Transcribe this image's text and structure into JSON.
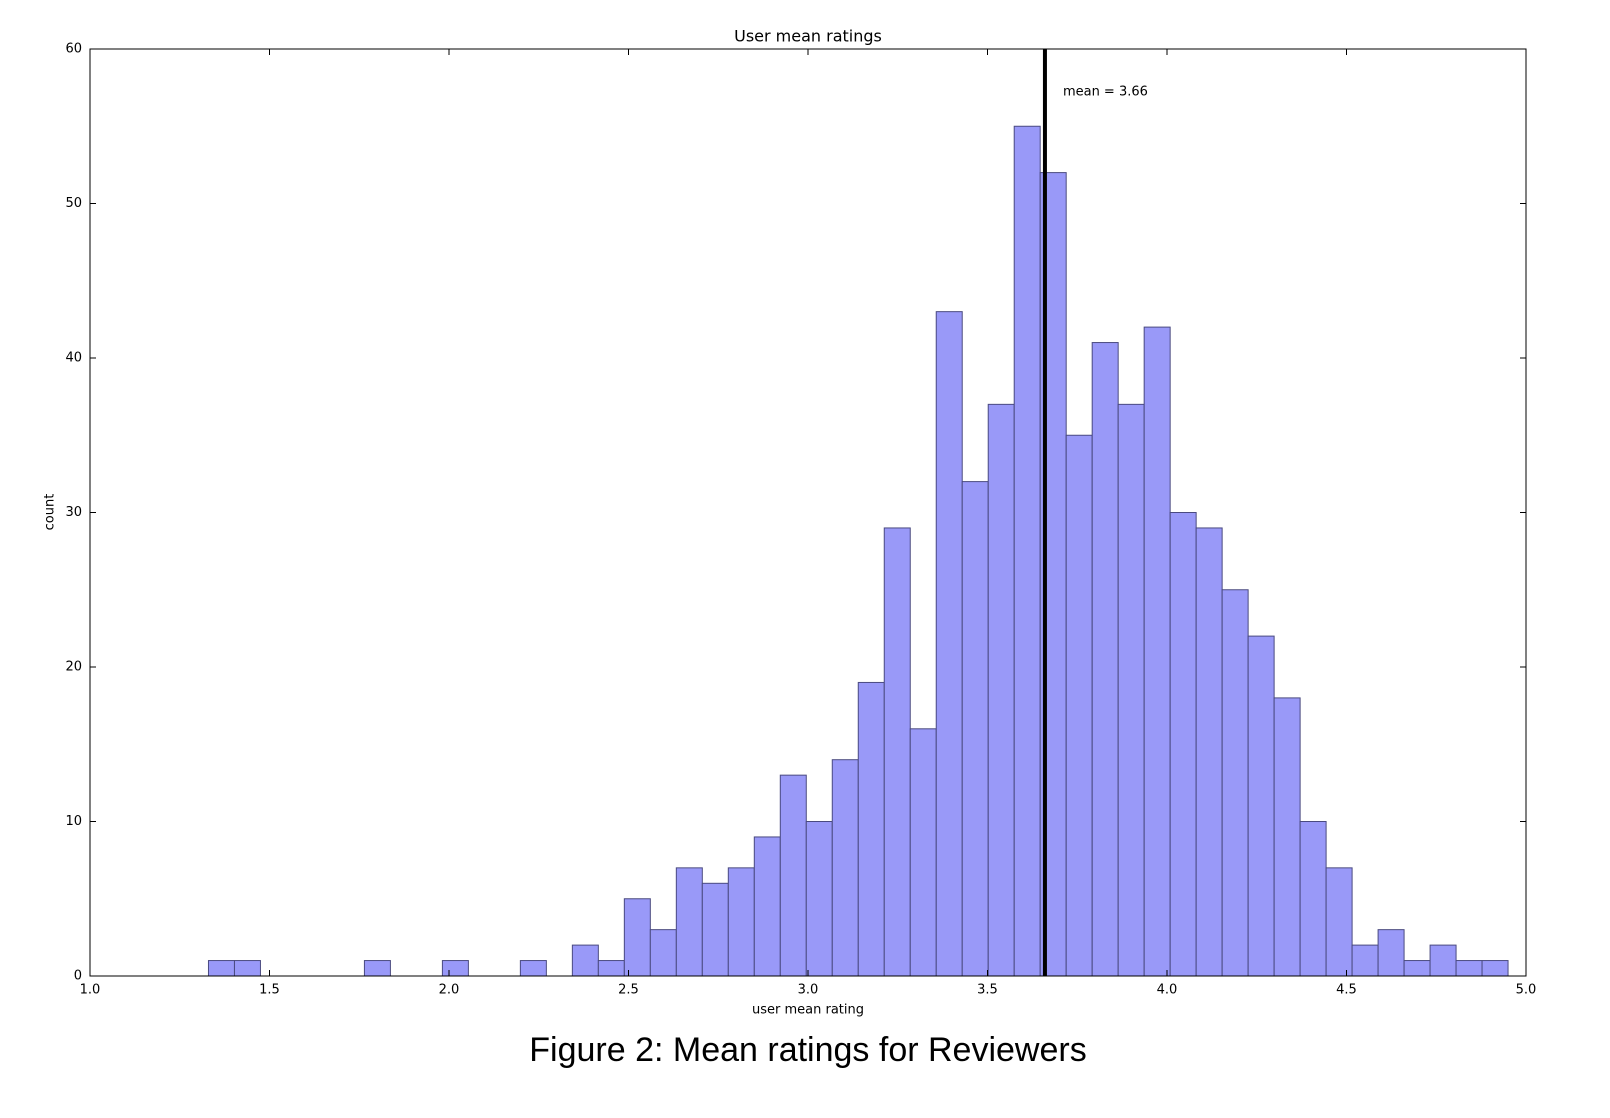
{
  "chart_data": {
    "type": "histogram",
    "title": "User mean ratings",
    "xlabel": "user mean rating",
    "ylabel": "count",
    "caption": "Figure 2: Mean ratings for Reviewers",
    "annotation": "mean = 3.66",
    "mean": 3.66,
    "mean_color": "#000000",
    "color": "#9999f8",
    "edgecolor": "#4a4a80",
    "bins": [
      1.33,
      1.4024,
      1.4748,
      1.5472,
      1.6196,
      1.692,
      1.7644,
      1.8368,
      1.9092,
      1.9816,
      2.054,
      2.1264,
      2.1988,
      2.2712,
      2.3436,
      2.416,
      2.4884,
      2.5608,
      2.6332,
      2.7056,
      2.778,
      2.8504,
      2.9228,
      2.9952,
      3.0676,
      3.14,
      3.2124,
      3.2848,
      3.3572,
      3.4296,
      3.502,
      3.5744,
      3.6468,
      3.7192,
      3.7916,
      3.864,
      3.9364,
      4.0088,
      4.0812,
      4.1536,
      4.226,
      4.2984,
      4.3708,
      4.4432,
      4.5156,
      4.588,
      4.6604,
      4.7328,
      4.8052,
      4.8776,
      4.95
    ],
    "values": [
      1,
      1,
      0,
      0,
      0,
      0,
      1,
      0,
      0,
      1,
      0,
      0,
      1,
      0,
      2,
      1,
      5,
      3,
      7,
      6,
      7,
      9,
      13,
      10,
      14,
      19,
      29,
      16,
      43,
      32,
      37,
      55,
      52,
      35,
      41,
      37,
      42,
      30,
      29,
      25,
      22,
      18,
      10,
      7,
      2,
      3,
      1,
      2,
      1,
      1
    ],
    "xlim": [
      1,
      5
    ],
    "ylim": [
      0,
      60
    ],
    "xticks": [
      {
        "value": 1,
        "label": "1.0"
      },
      1.5,
      {
        "value": 2,
        "label": "2.0"
      },
      2.5,
      {
        "value": 3,
        "label": "3.0"
      },
      3.5,
      {
        "value": 4,
        "label": "4.0"
      },
      4.5,
      {
        "value": 5,
        "label": "5.0"
      }
    ],
    "yticks": [
      0,
      10,
      20,
      30,
      40,
      50,
      60
    ]
  }
}
